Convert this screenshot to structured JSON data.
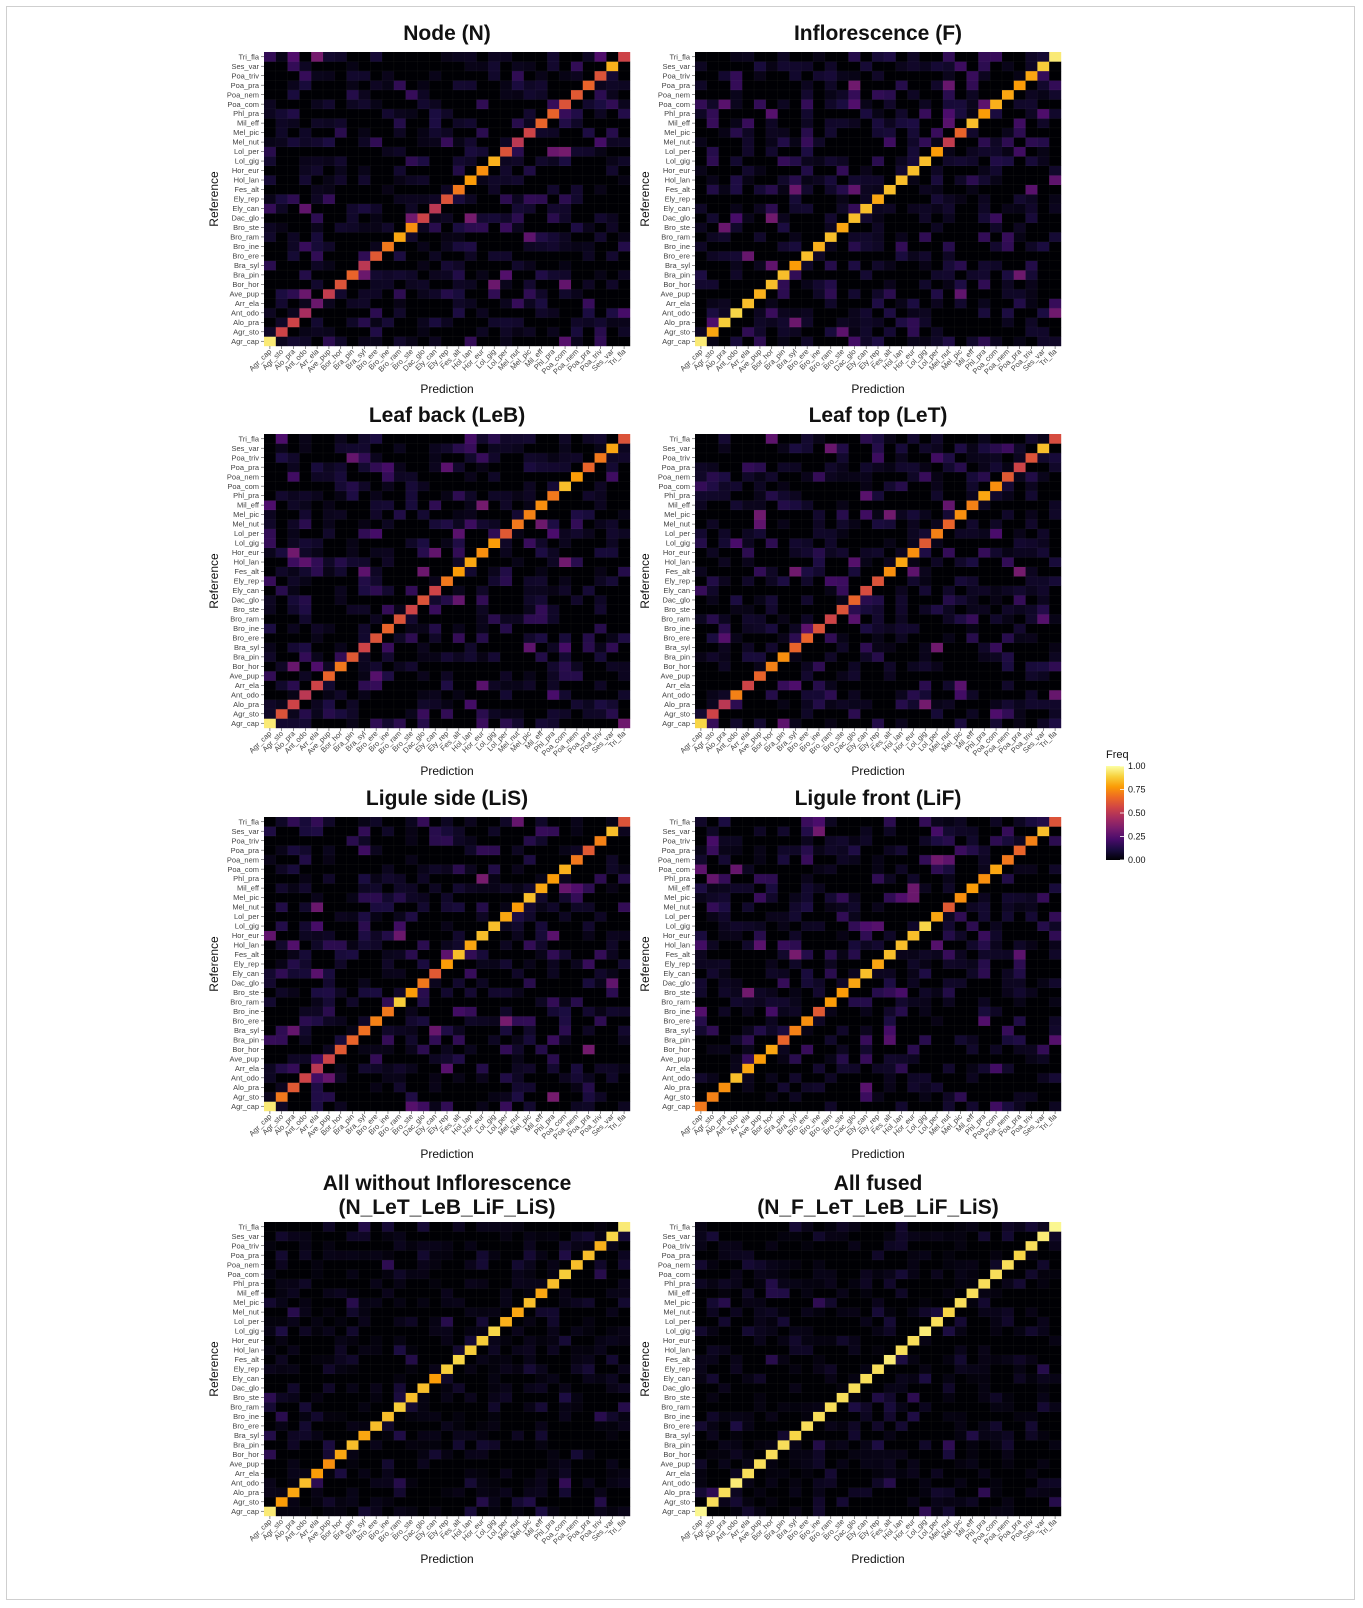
{
  "chart_data": {
    "type": "heatmap",
    "classes": [
      "Agr_cap",
      "Agr_sto",
      "Alo_pra",
      "Ant_odo",
      "Arr_ela",
      "Ave_pup",
      "Bor_hor",
      "Bra_pin",
      "Bra_syl",
      "Bro_ere",
      "Bro_ine",
      "Bro_ram",
      "Bro_ste",
      "Dac_glo",
      "Ely_can",
      "Ely_rep",
      "Fes_alt",
      "Hol_lan",
      "Hor_eur",
      "Lol_gig",
      "Lol_per",
      "Mel_nut",
      "Mel_pic",
      "Mil_eff",
      "Phl_pra",
      "Poa_com",
      "Poa_nem",
      "Poa_pra",
      "Poa_triv",
      "Ses_var",
      "Tri_fla"
    ],
    "xlabel": "Prediction",
    "ylabel": "Reference",
    "legend": {
      "title": "Freq",
      "ticks": [
        "1.00",
        "0.75",
        "0.50",
        "0.25",
        "0.00"
      ],
      "placement": "right"
    },
    "color_scale": [
      "#000004",
      "#1b0c41",
      "#4a0c6b",
      "#781c6d",
      "#a52c60",
      "#cf4446",
      "#ed6925",
      "#fb9b06",
      "#f7d13d",
      "#fcffa4"
    ],
    "panels": [
      {
        "title_lines": [
          "Node (N)"
        ],
        "diagonal": [
          0.95,
          0.55,
          0.55,
          0.45,
          0.3,
          0.52,
          0.6,
          0.65,
          0.5,
          0.62,
          0.7,
          0.8,
          0.75,
          0.55,
          0.5,
          0.6,
          0.7,
          0.78,
          0.75,
          0.82,
          0.6,
          0.5,
          0.55,
          0.65,
          0.65,
          0.6,
          0.62,
          0.65,
          0.6,
          0.82,
          0.55
        ]
      },
      {
        "title_lines": [
          "Inflorescence (F)"
        ],
        "diagonal": [
          0.95,
          0.8,
          0.88,
          0.9,
          0.85,
          0.82,
          0.85,
          0.85,
          0.78,
          0.85,
          0.82,
          0.85,
          0.8,
          0.85,
          0.85,
          0.8,
          0.85,
          0.85,
          0.85,
          0.85,
          0.78,
          0.52,
          0.65,
          0.85,
          0.78,
          0.82,
          0.8,
          0.78,
          0.8,
          0.88,
          0.95
        ]
      },
      {
        "title_lines": [
          "Leaf back (LeB)"
        ],
        "diagonal": [
          0.95,
          0.6,
          0.55,
          0.5,
          0.55,
          0.65,
          0.7,
          0.62,
          0.55,
          0.6,
          0.65,
          0.6,
          0.55,
          0.6,
          0.55,
          0.7,
          0.78,
          0.8,
          0.75,
          0.78,
          0.62,
          0.7,
          0.72,
          0.75,
          0.7,
          0.85,
          0.78,
          0.65,
          0.7,
          0.8,
          0.6
        ]
      },
      {
        "title_lines": [
          "Leaf top (LeT)"
        ],
        "diagonal": [
          0.9,
          0.55,
          0.5,
          0.72,
          0.55,
          0.65,
          0.72,
          0.75,
          0.65,
          0.65,
          0.6,
          0.55,
          0.6,
          0.65,
          0.58,
          0.6,
          0.75,
          0.8,
          0.75,
          0.62,
          0.72,
          0.65,
          0.75,
          0.72,
          0.8,
          0.75,
          0.62,
          0.55,
          0.6,
          0.85,
          0.58
        ]
      },
      {
        "title_lines": [
          "Ligule side (LiS)"
        ],
        "diagonal": [
          0.95,
          0.7,
          0.62,
          0.55,
          0.5,
          0.55,
          0.62,
          0.65,
          0.68,
          0.72,
          0.7,
          0.88,
          0.78,
          0.7,
          0.62,
          0.78,
          0.85,
          0.8,
          0.85,
          0.85,
          0.8,
          0.78,
          0.85,
          0.8,
          0.78,
          0.82,
          0.7,
          0.62,
          0.72,
          0.85,
          0.6
        ]
      },
      {
        "title_lines": [
          "Ligule front (LiF)"
        ],
        "diagonal": [
          0.7,
          0.72,
          0.75,
          0.85,
          0.8,
          0.78,
          0.8,
          0.65,
          0.72,
          0.75,
          0.62,
          0.78,
          0.78,
          0.8,
          0.85,
          0.8,
          0.85,
          0.85,
          0.85,
          0.9,
          0.8,
          0.62,
          0.75,
          0.78,
          0.75,
          0.8,
          0.7,
          0.65,
          0.72,
          0.85,
          0.6
        ]
      },
      {
        "title_lines": [
          "All without Inflorescence",
          "(N_LeT_LeB_LiF_LiS)"
        ],
        "diagonal": [
          0.95,
          0.78,
          0.8,
          0.85,
          0.78,
          0.75,
          0.8,
          0.85,
          0.8,
          0.85,
          0.85,
          0.88,
          0.85,
          0.85,
          0.78,
          0.88,
          0.9,
          0.88,
          0.88,
          0.9,
          0.82,
          0.8,
          0.85,
          0.8,
          0.85,
          0.88,
          0.85,
          0.85,
          0.82,
          0.9,
          0.95
        ]
      },
      {
        "title_lines": [
          "All fused",
          "(N_F_LeT_LeB_LiF_LiS)"
        ],
        "diagonal": [
          0.98,
          0.92,
          0.92,
          0.95,
          0.92,
          0.92,
          0.92,
          0.92,
          0.9,
          0.92,
          0.92,
          0.92,
          0.92,
          0.92,
          0.92,
          0.92,
          0.95,
          0.92,
          0.92,
          0.95,
          0.92,
          0.9,
          0.92,
          0.92,
          0.92,
          0.92,
          0.92,
          0.9,
          0.92,
          0.95,
          0.98
        ]
      }
    ]
  }
}
